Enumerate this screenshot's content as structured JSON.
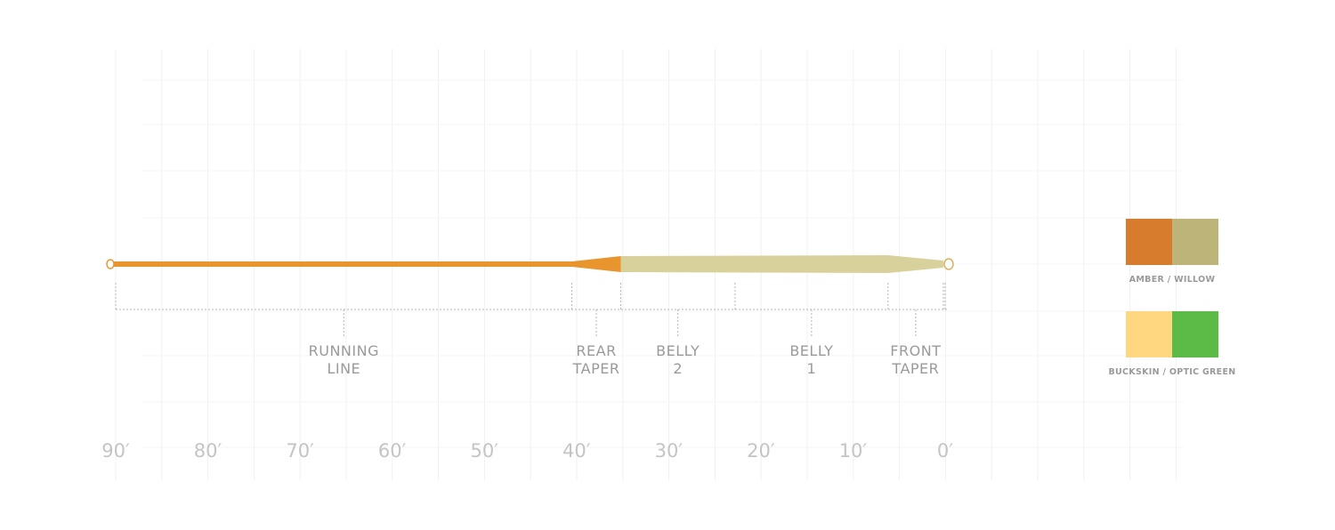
{
  "diagram": {
    "axis_ticks": [
      "90′",
      "80′",
      "70′",
      "60′",
      "50′",
      "40′",
      "30′",
      "20′",
      "10′",
      "0′"
    ],
    "axis_range_ft": [
      90,
      0
    ],
    "segments": [
      {
        "label_lines": [
          "RUNNING",
          "LINE"
        ],
        "from_ft": 90,
        "to_ft": 40.5
      },
      {
        "label_lines": [
          "REAR",
          "TAPER"
        ],
        "from_ft": 40.5,
        "to_ft": 35.2
      },
      {
        "label_lines": [
          "BELLY",
          "2"
        ],
        "from_ft": 35.2,
        "to_ft": 22.8
      },
      {
        "label_lines": [
          "BELLY",
          "1"
        ],
        "from_ft": 22.8,
        "to_ft": 6.2
      },
      {
        "label_lines": [
          "FRONT",
          "TAPER"
        ],
        "from_ft": 6.2,
        "to_ft": 0.2
      }
    ],
    "line_colors": {
      "running_line": "#E8952E",
      "head": "#D9D19B"
    },
    "swatches": [
      {
        "label": "AMBER / WILLOW",
        "colors": [
          "#D77B2C",
          "#BDB47A"
        ]
      },
      {
        "label": "BUCKSKIN / OPTIC GREEN",
        "colors": [
          "#FFD780",
          "#5BBB46"
        ]
      }
    ]
  }
}
